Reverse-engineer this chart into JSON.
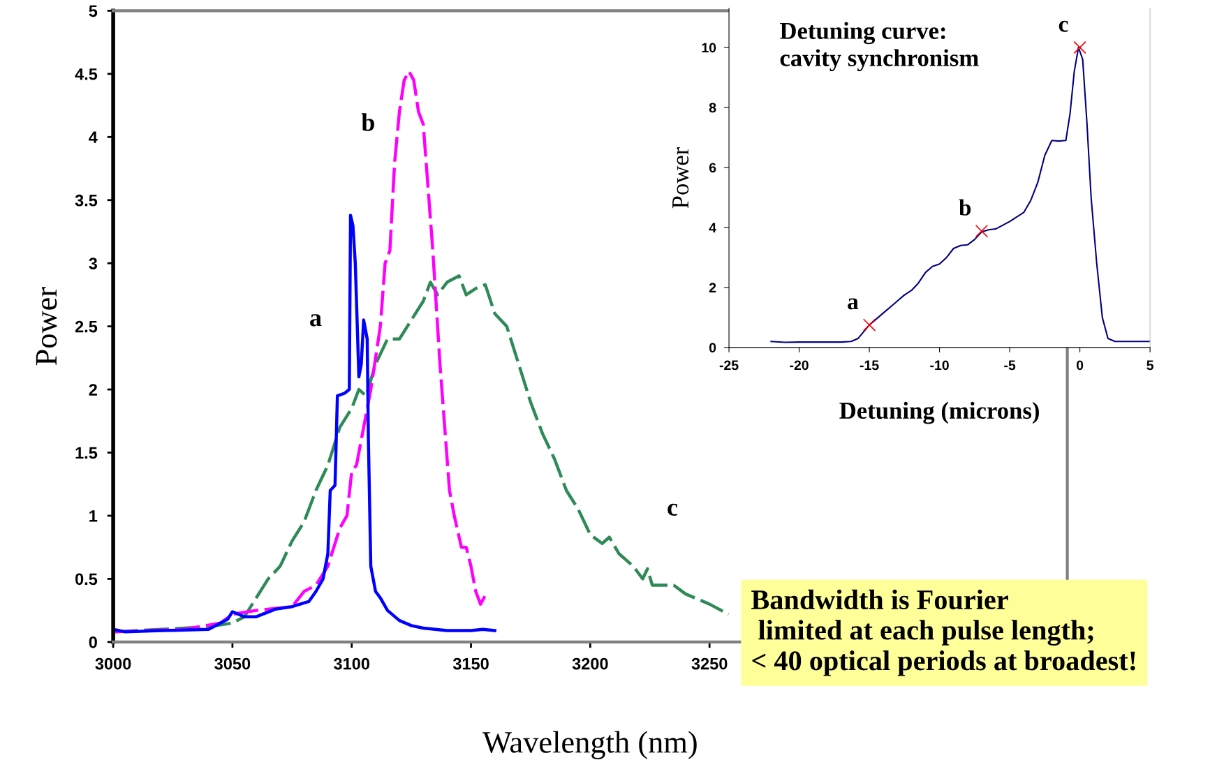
{
  "chart_data": [
    {
      "type": "line",
      "xlabel": "Wavelength (nm)",
      "ylabel": "Power",
      "xlim": [
        3000,
        3400
      ],
      "ylim": [
        0,
        5
      ],
      "xticks": [
        3000,
        3050,
        3100,
        3150,
        3200,
        3250
      ],
      "yticks": [
        0,
        0.5,
        1,
        1.5,
        2,
        2.5,
        3,
        3.5,
        4,
        4.5,
        5
      ],
      "grid": false,
      "legend": false,
      "series": [
        {
          "name": "c",
          "color": "#2e8b57",
          "line_style": "dashed",
          "x": [
            3000,
            3020,
            3040,
            3050,
            3055,
            3060,
            3065,
            3070,
            3075,
            3080,
            3085,
            3090,
            3095,
            3100,
            3103,
            3106,
            3110,
            3115,
            3120,
            3125,
            3130,
            3133,
            3136,
            3140,
            3145,
            3148,
            3152,
            3156,
            3160,
            3165,
            3170,
            3175,
            3180,
            3185,
            3190,
            3195,
            3200,
            3205,
            3208,
            3212,
            3218,
            3222,
            3224,
            3226,
            3235,
            3240,
            3250,
            3258
          ],
          "values": [
            0.08,
            0.1,
            0.12,
            0.15,
            0.2,
            0.35,
            0.5,
            0.6,
            0.8,
            0.95,
            1.2,
            1.4,
            1.7,
            1.85,
            2.0,
            1.95,
            2.2,
            2.4,
            2.4,
            2.55,
            2.7,
            2.85,
            2.75,
            2.85,
            2.9,
            2.75,
            2.8,
            2.83,
            2.6,
            2.5,
            2.2,
            1.9,
            1.65,
            1.45,
            1.2,
            1.05,
            0.85,
            0.78,
            0.83,
            0.7,
            0.6,
            0.5,
            0.58,
            0.45,
            0.45,
            0.38,
            0.3,
            0.22
          ]
        },
        {
          "name": "b",
          "color": "#ff00ff",
          "line_style": "dashed",
          "x": [
            3000,
            3030,
            3045,
            3050,
            3060,
            3075,
            3080,
            3085,
            3090,
            3095,
            3098,
            3100,
            3102,
            3105,
            3108,
            3112,
            3114,
            3116,
            3118,
            3120,
            3122,
            3124,
            3126,
            3128,
            3130,
            3132,
            3134,
            3137,
            3139,
            3141,
            3143,
            3146,
            3148,
            3150,
            3152,
            3154,
            3156,
            3158
          ],
          "values": [
            0.08,
            0.1,
            0.15,
            0.22,
            0.25,
            0.28,
            0.4,
            0.45,
            0.6,
            0.9,
            1.0,
            1.35,
            1.4,
            1.7,
            2.0,
            2.5,
            3.0,
            3.1,
            3.8,
            4.2,
            4.45,
            4.52,
            4.45,
            4.2,
            4.1,
            3.6,
            3.1,
            2.2,
            1.7,
            1.2,
            1.0,
            0.75,
            0.75,
            0.6,
            0.4,
            0.3,
            0.37,
            0.37
          ]
        },
        {
          "name": "a",
          "color": "#0000ff",
          "line_style": "solid",
          "x": [
            3000,
            3005,
            3020,
            3040,
            3048,
            3050,
            3055,
            3060,
            3068,
            3075,
            3082,
            3085,
            3088,
            3090,
            3091,
            3093,
            3094,
            3097,
            3099,
            3099.5,
            3100.5,
            3101.5,
            3103,
            3104,
            3105,
            3106.5,
            3107,
            3108,
            3110,
            3112,
            3115,
            3120,
            3125,
            3130,
            3140,
            3150,
            3155,
            3160
          ],
          "values": [
            0.1,
            0.08,
            0.09,
            0.1,
            0.18,
            0.24,
            0.2,
            0.2,
            0.26,
            0.28,
            0.32,
            0.4,
            0.5,
            0.7,
            1.2,
            1.24,
            1.95,
            1.97,
            2.0,
            3.38,
            3.3,
            3.0,
            2.1,
            2.2,
            2.55,
            2.4,
            1.6,
            0.6,
            0.4,
            0.35,
            0.25,
            0.17,
            0.13,
            0.11,
            0.09,
            0.09,
            0.1,
            0.09
          ]
        }
      ],
      "annotations": [
        "Bandwidth is Fourier\n limited at each pulse length;\n< 40 optical periods at broadest!"
      ]
    },
    {
      "type": "line",
      "title": "Detuning curve:\ncavity synchronism",
      "xlabel": "Detuning (microns)",
      "ylabel": "Power",
      "xlim": [
        -25,
        5
      ],
      "ylim": [
        0,
        11.3
      ],
      "xticks": [
        -25,
        -20,
        -15,
        -10,
        -5,
        0,
        5
      ],
      "yticks": [
        0,
        2,
        4,
        6,
        8,
        10
      ],
      "grid": false,
      "legend": false,
      "series": [
        {
          "color": "#000080",
          "line_style": "solid",
          "x": [
            -22,
            -21,
            -20,
            -17,
            -16.3,
            -15.8,
            -15,
            -14,
            -13,
            -12.5,
            -12,
            -11.5,
            -11,
            -10.5,
            -10,
            -9.5,
            -9,
            -8.5,
            -8,
            -7.5,
            -7,
            -6.5,
            -6,
            -5,
            -4,
            -3.5,
            -3,
            -2.5,
            -2,
            -1.5,
            -1,
            -0.7,
            -0.4,
            -0.1,
            0.2,
            0.5,
            0.8,
            1.2,
            1.6,
            2.0,
            2.5,
            5
          ],
          "values": [
            0.2,
            0.17,
            0.18,
            0.18,
            0.2,
            0.3,
            0.75,
            1.15,
            1.55,
            1.75,
            1.9,
            2.15,
            2.5,
            2.7,
            2.78,
            3.0,
            3.3,
            3.4,
            3.42,
            3.6,
            3.85,
            3.92,
            3.95,
            4.2,
            4.5,
            4.9,
            5.5,
            6.4,
            6.9,
            6.88,
            6.9,
            7.8,
            9.2,
            10.0,
            9.6,
            7.5,
            5.0,
            2.8,
            1.0,
            0.3,
            0.2,
            0.2
          ]
        },
        {
          "type": "scatter",
          "color": "#ff0000",
          "marker": "cross",
          "x": [
            -15,
            -7,
            0
          ],
          "values": [
            0.75,
            3.88,
            10.0
          ],
          "value_labels": [
            "a",
            "b",
            "c"
          ]
        }
      ]
    }
  ]
}
